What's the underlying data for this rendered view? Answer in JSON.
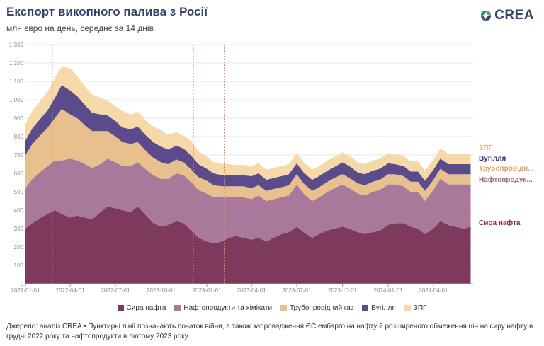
{
  "header": {
    "title": "Експорт викопного палива з Росії",
    "subtitle": "млн євро на день, середнє за 14 днів",
    "logo_text": "CREA"
  },
  "source_note": "Джерело: аналіз CREA • Пунктирні лінії позначають початок війни, а також запровадження ЄС ембарго на нафту й розширеного обмеження цін на сиру нафту в грудні 2022 року та нафтопродукти в лютому 2023 року.",
  "chart_data": {
    "type": "area",
    "stacked": true,
    "title": "Експорт викопного палива з Росії",
    "subtitle": "млн євро на день, середнє за 14 днів",
    "ylim": [
      0,
      1300
    ],
    "yticks": [
      0,
      100,
      200,
      300,
      400,
      500,
      600,
      700,
      800,
      900,
      1000,
      1100,
      1200,
      1300
    ],
    "ytick_labels": [
      "0",
      "100",
      "200",
      "300",
      "400",
      "500",
      "600",
      "700",
      "800",
      "900",
      "1,000",
      "1,100",
      "1,200",
      "1,300"
    ],
    "xlim": [
      "2022-01-01",
      "2024-06-20"
    ],
    "xticks": [
      "2022-01-01",
      "2022-04-01",
      "2022-07-01",
      "2022-10-01",
      "2023-01-01",
      "2023-04-01",
      "2023-07-01",
      "2023-10-01",
      "2024-01-01",
      "2024-04-01"
    ],
    "grid": true,
    "event_lines": [
      "2022-02-24",
      "2022-12-05",
      "2023-02-05"
    ],
    "x": [
      "2022-01-01",
      "2022-01-15",
      "2022-02-01",
      "2022-02-15",
      "2022-03-01",
      "2022-03-15",
      "2022-04-01",
      "2022-04-15",
      "2022-05-01",
      "2022-05-15",
      "2022-06-01",
      "2022-06-15",
      "2022-07-01",
      "2022-07-15",
      "2022-08-01",
      "2022-08-15",
      "2022-09-01",
      "2022-09-15",
      "2022-10-01",
      "2022-10-15",
      "2022-11-01",
      "2022-11-15",
      "2022-12-01",
      "2022-12-15",
      "2023-01-01",
      "2023-01-15",
      "2023-02-01",
      "2023-02-15",
      "2023-03-01",
      "2023-03-15",
      "2023-04-01",
      "2023-04-15",
      "2023-05-01",
      "2023-05-15",
      "2023-06-01",
      "2023-06-15",
      "2023-07-01",
      "2023-07-15",
      "2023-08-01",
      "2023-08-15",
      "2023-09-01",
      "2023-09-15",
      "2023-10-01",
      "2023-10-15",
      "2023-11-01",
      "2023-11-15",
      "2023-12-01",
      "2023-12-15",
      "2024-01-01",
      "2024-01-15",
      "2024-02-01",
      "2024-02-15",
      "2024-03-01",
      "2024-03-15",
      "2024-04-01",
      "2024-04-15",
      "2024-05-01",
      "2024-05-15",
      "2024-06-01",
      "2024-06-15"
    ],
    "series": [
      {
        "name": "Сира нафта",
        "color": "#7d3a5c",
        "values": [
          300,
          330,
          360,
          380,
          400,
          380,
          360,
          370,
          360,
          350,
          390,
          420,
          410,
          400,
          390,
          420,
          370,
          330,
          310,
          320,
          340,
          330,
          290,
          250,
          230,
          220,
          230,
          250,
          260,
          250,
          240,
          250,
          230,
          250,
          270,
          280,
          310,
          280,
          250,
          270,
          290,
          300,
          310,
          300,
          280,
          270,
          280,
          290,
          320,
          330,
          330,
          310,
          300,
          270,
          300,
          340,
          320,
          310,
          300,
          310
        ]
      },
      {
        "name": "Нафтопродукти та хімікати",
        "color": "#a8799a",
        "values": [
          220,
          240,
          250,
          260,
          270,
          290,
          320,
          300,
          290,
          280,
          260,
          260,
          250,
          240,
          250,
          240,
          250,
          260,
          260,
          250,
          260,
          260,
          260,
          260,
          260,
          250,
          240,
          220,
          210,
          220,
          220,
          230,
          220,
          210,
          200,
          200,
          230,
          210,
          200,
          200,
          210,
          220,
          230,
          220,
          210,
          210,
          220,
          220,
          220,
          210,
          200,
          190,
          200,
          180,
          210,
          230,
          220,
          230,
          240,
          230
        ]
      },
      {
        "name": "Трубопровідний газ",
        "color": "#e8c08e",
        "values": [
          180,
          190,
          200,
          210,
          230,
          280,
          240,
          230,
          210,
          200,
          180,
          150,
          140,
          130,
          120,
          110,
          100,
          95,
          90,
          80,
          75,
          70,
          70,
          70,
          70,
          65,
          60,
          60,
          60,
          60,
          60,
          55,
          55,
          55,
          55,
          55,
          55,
          55,
          55,
          55,
          55,
          55,
          55,
          55,
          55,
          55,
          55,
          55,
          55,
          55,
          55,
          55,
          55,
          55,
          55,
          55,
          55,
          55,
          55,
          55
        ]
      },
      {
        "name": "Вугілля",
        "color": "#5b4b8a",
        "values": [
          80,
          85,
          90,
          95,
          110,
          130,
          130,
          120,
          110,
          100,
          90,
          85,
          85,
          80,
          80,
          85,
          85,
          85,
          85,
          80,
          75,
          75,
          75,
          70,
          65,
          65,
          60,
          60,
          60,
          60,
          65,
          65,
          60,
          60,
          60,
          60,
          60,
          60,
          60,
          60,
          60,
          60,
          65,
          65,
          60,
          60,
          60,
          60,
          60,
          55,
          55,
          55,
          55,
          55,
          55,
          55,
          55,
          55,
          55,
          55
        ]
      },
      {
        "name": "ЗПГ",
        "color": "#f5d9a8",
        "values": [
          90,
          95,
          100,
          100,
          110,
          100,
          120,
          110,
          100,
          100,
          90,
          80,
          80,
          90,
          80,
          80,
          80,
          85,
          90,
          80,
          75,
          70,
          80,
          70,
          65,
          60,
          60,
          60,
          55,
          55,
          55,
          55,
          55,
          55,
          55,
          55,
          55,
          55,
          55,
          55,
          55,
          55,
          55,
          55,
          55,
          55,
          55,
          55,
          55,
          55,
          55,
          55,
          55,
          55,
          55,
          55,
          55,
          55,
          55,
          55
        ]
      }
    ],
    "end_labels": [
      "ЗПГ",
      "Вугілля",
      "Трубопровідн...",
      "Нафтопродук...",
      "Сира нафта"
    ]
  }
}
